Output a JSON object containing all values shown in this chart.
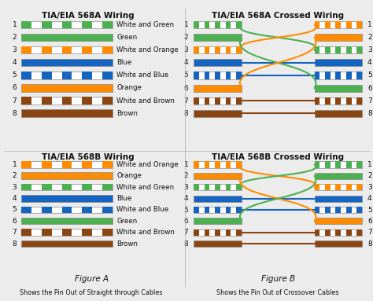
{
  "bg_color": "#ececec",
  "title_fontsize": 7.5,
  "label_fontsize": 6.2,
  "pin_fontsize": 6.5,
  "figure_fontsize": 7.5,
  "caption_fontsize": 5.8,
  "wire_colors_568A": [
    {
      "name": "White and Green",
      "solid": "#4CAF50",
      "striped": true
    },
    {
      "name": "Green",
      "solid": "#4CAF50",
      "striped": false
    },
    {
      "name": "White and Orange",
      "solid": "#FF8C00",
      "striped": true
    },
    {
      "name": "Blue",
      "solid": "#1565C0",
      "striped": false
    },
    {
      "name": "White and Blue",
      "solid": "#1565C0",
      "striped": true
    },
    {
      "name": "Orange",
      "solid": "#FF8C00",
      "striped": false
    },
    {
      "name": "White and Brown",
      "solid": "#8B4513",
      "striped": true
    },
    {
      "name": "Brown",
      "solid": "#8B4513",
      "striped": false
    }
  ],
  "wire_colors_568B": [
    {
      "name": "White and Orange",
      "solid": "#FF8C00",
      "striped": true
    },
    {
      "name": "Orange",
      "solid": "#FF8C00",
      "striped": false
    },
    {
      "name": "White and Green",
      "solid": "#4CAF50",
      "striped": true
    },
    {
      "name": "Blue",
      "solid": "#1565C0",
      "striped": false
    },
    {
      "name": "White and Blue",
      "solid": "#1565C0",
      "striped": true
    },
    {
      "name": "Green",
      "solid": "#4CAF50",
      "striped": false
    },
    {
      "name": "White and Brown",
      "solid": "#8B4513",
      "striped": true
    },
    {
      "name": "Brown",
      "solid": "#8B4513",
      "striped": false
    }
  ],
  "cross_568A_lr": [
    0,
    1,
    2,
    3,
    4,
    5,
    6,
    7
  ],
  "cross_568A_rr": [
    2,
    5,
    1,
    0,
    7,
    6,
    3,
    4
  ],
  "cross_568B_lr": [
    0,
    1,
    2,
    3,
    4,
    5,
    6,
    7
  ],
  "cross_568B_rr": [
    0,
    2,
    5,
    3,
    4,
    1,
    6,
    7
  ],
  "colors": {
    "green": "#4CAF50",
    "orange": "#FF8C00",
    "blue": "#1565C0",
    "brown": "#8B4513",
    "white": "#FFFFFF"
  }
}
